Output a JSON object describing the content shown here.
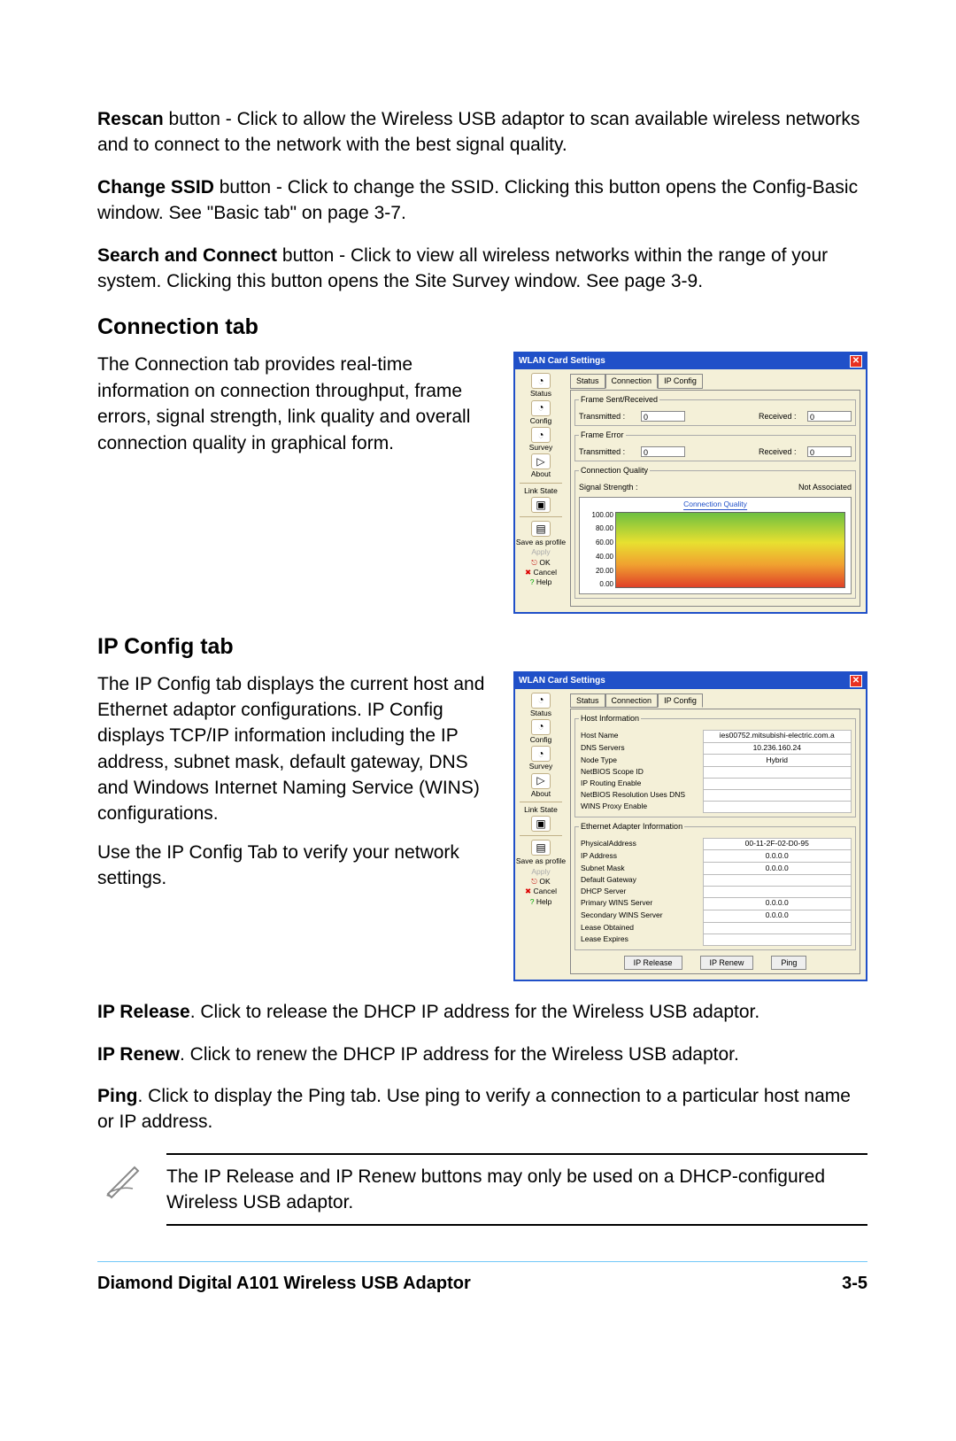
{
  "para1": {
    "bold": "Rescan",
    "rest": " button - Click to allow the Wireless USB adaptor to scan available wireless networks and to connect to the network with the best signal quality."
  },
  "para2": {
    "bold": "Change SSID",
    "rest": " button - Click to change the SSID. Clicking this button opens the Config-Basic window. See \"Basic tab\" on page 3-7."
  },
  "para3": {
    "bold": "Search and Connect",
    "rest": " button - Click to view all wireless networks within the range of your system. Clicking this button opens the Site Survey window. See page 3-9."
  },
  "conn": {
    "heading": "Connection tab",
    "text": "The Connection tab provides real-time information on connection throughput, frame errors, signal strength, link quality and overall connection quality in graphical form.",
    "window": {
      "title": "WLAN Card Settings",
      "tabs": [
        "Status",
        "Connection",
        "IP Config"
      ],
      "active_tab": 1,
      "sidebar": [
        "Status",
        "Config",
        "Survey",
        "About",
        "Link State",
        "",
        "Save as profile",
        "Apply",
        "OK",
        "Cancel",
        "Help"
      ],
      "frame_sent": {
        "legend": "Frame Sent/Received",
        "tx_label": "Transmitted :",
        "tx_val": "0",
        "rx_label": "Received :",
        "rx_val": "0"
      },
      "frame_err": {
        "legend": "Frame Error",
        "tx_label": "Transmitted :",
        "tx_val": "0",
        "rx_label": "Received :",
        "rx_val": "0"
      },
      "cq_legend": "Connection Quality",
      "sig_label": "Signal Strength :",
      "sig_val": "Not Associated",
      "chart": {
        "title": "Connection Quality",
        "y_labels": [
          "100.00",
          "80.00",
          "60.00",
          "40.00",
          "20.00",
          "0.00"
        ],
        "gradient_colors": [
          "#6dc040",
          "#e8e030",
          "#f0a030",
          "#e04028"
        ]
      }
    }
  },
  "ip": {
    "heading": "IP Config tab",
    "text1": "The IP Config tab displays the current host and Ethernet adaptor configurations. IP Config displays TCP/IP information including the IP address, subnet mask, default gateway, DNS and Windows Internet Naming Service (WINS) configurations.",
    "text2": "Use the IP Config Tab to verify your network  settings.",
    "window": {
      "title": "WLAN Card Settings",
      "tabs": [
        "Status",
        "Connection",
        "IP Config"
      ],
      "active_tab": 2,
      "host_legend": "Host Information",
      "host_rows": [
        [
          "Host Name",
          "ies00752.mitsubishi-electric.com.a"
        ],
        [
          "DNS Servers",
          "10.236.160.24"
        ],
        [
          "Node Type",
          "Hybrid"
        ],
        [
          "NetBIOS Scope ID",
          ""
        ],
        [
          "IP Routing Enable",
          ""
        ],
        [
          "NetBIOS Resolution Uses DNS",
          ""
        ],
        [
          "WINS Proxy Enable",
          ""
        ]
      ],
      "eth_legend": "Ethernet Adapter Information",
      "eth_rows": [
        [
          "PhysicalAddress",
          "00-11-2F-02-D0-95"
        ],
        [
          "IP Address",
          "0.0.0.0"
        ],
        [
          "Subnet Mask",
          "0.0.0.0"
        ],
        [
          "Default Gateway",
          ""
        ],
        [
          "DHCP Server",
          ""
        ],
        [
          "Primary WINS Server",
          "0.0.0.0"
        ],
        [
          "Secondary WINS Server",
          "0.0.0.0"
        ],
        [
          "Lease Obtained",
          ""
        ],
        [
          "Lease Expires",
          ""
        ]
      ],
      "buttons": [
        "IP Release",
        "IP Renew",
        "Ping"
      ]
    }
  },
  "iprel": {
    "bold": "IP Release",
    "rest": ". Click to release the DHCP IP address for the Wireless USB adaptor."
  },
  "ipren": {
    "bold": "IP Renew",
    "rest": ". Click to renew the DHCP IP address for the Wireless USB adaptor."
  },
  "ping": {
    "bold": "Ping",
    "rest": ". Click to display the Ping  tab. Use ping to verify a connection to a particular host name or IP address."
  },
  "note": "The IP Release and IP Renew buttons may only be used on a DHCP-configured Wireless USB adaptor.",
  "footer": {
    "left": "Diamond Digital A101 Wireless USB Adaptor",
    "right": "3-5"
  }
}
